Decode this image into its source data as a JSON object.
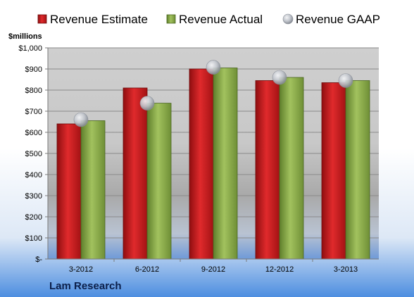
{
  "company": "Lam Research",
  "chart_data": {
    "type": "bar",
    "unit_label": "$millions",
    "categories": [
      "3-2012",
      "6-2012",
      "9-2012",
      "12-2012",
      "3-2013"
    ],
    "series": [
      {
        "name": "Revenue Estimate",
        "kind": "bar",
        "color": "#c8191c",
        "values": [
          640,
          810,
          900,
          845,
          835
        ]
      },
      {
        "name": "Revenue Actual",
        "kind": "bar",
        "color": "#8db04d",
        "values": [
          655,
          738,
          905,
          860,
          845
        ]
      },
      {
        "name": "Revenue GAAP",
        "kind": "marker",
        "color": "#b8bcc4",
        "values": [
          660,
          738,
          908,
          860,
          845
        ]
      }
    ],
    "ylim": [
      0,
      1000
    ],
    "yticks": [
      {
        "value": 0,
        "label": "$-"
      },
      {
        "value": 100,
        "label": "$100"
      },
      {
        "value": 200,
        "label": "$200"
      },
      {
        "value": 300,
        "label": "$300"
      },
      {
        "value": 400,
        "label": "$400"
      },
      {
        "value": 500,
        "label": "$500"
      },
      {
        "value": 600,
        "label": "$600"
      },
      {
        "value": 700,
        "label": "$700"
      },
      {
        "value": 800,
        "label": "$800"
      },
      {
        "value": 900,
        "label": "$900"
      },
      {
        "value": 1000,
        "label": "$1,000"
      }
    ],
    "grid": true,
    "legend_position": "top"
  }
}
